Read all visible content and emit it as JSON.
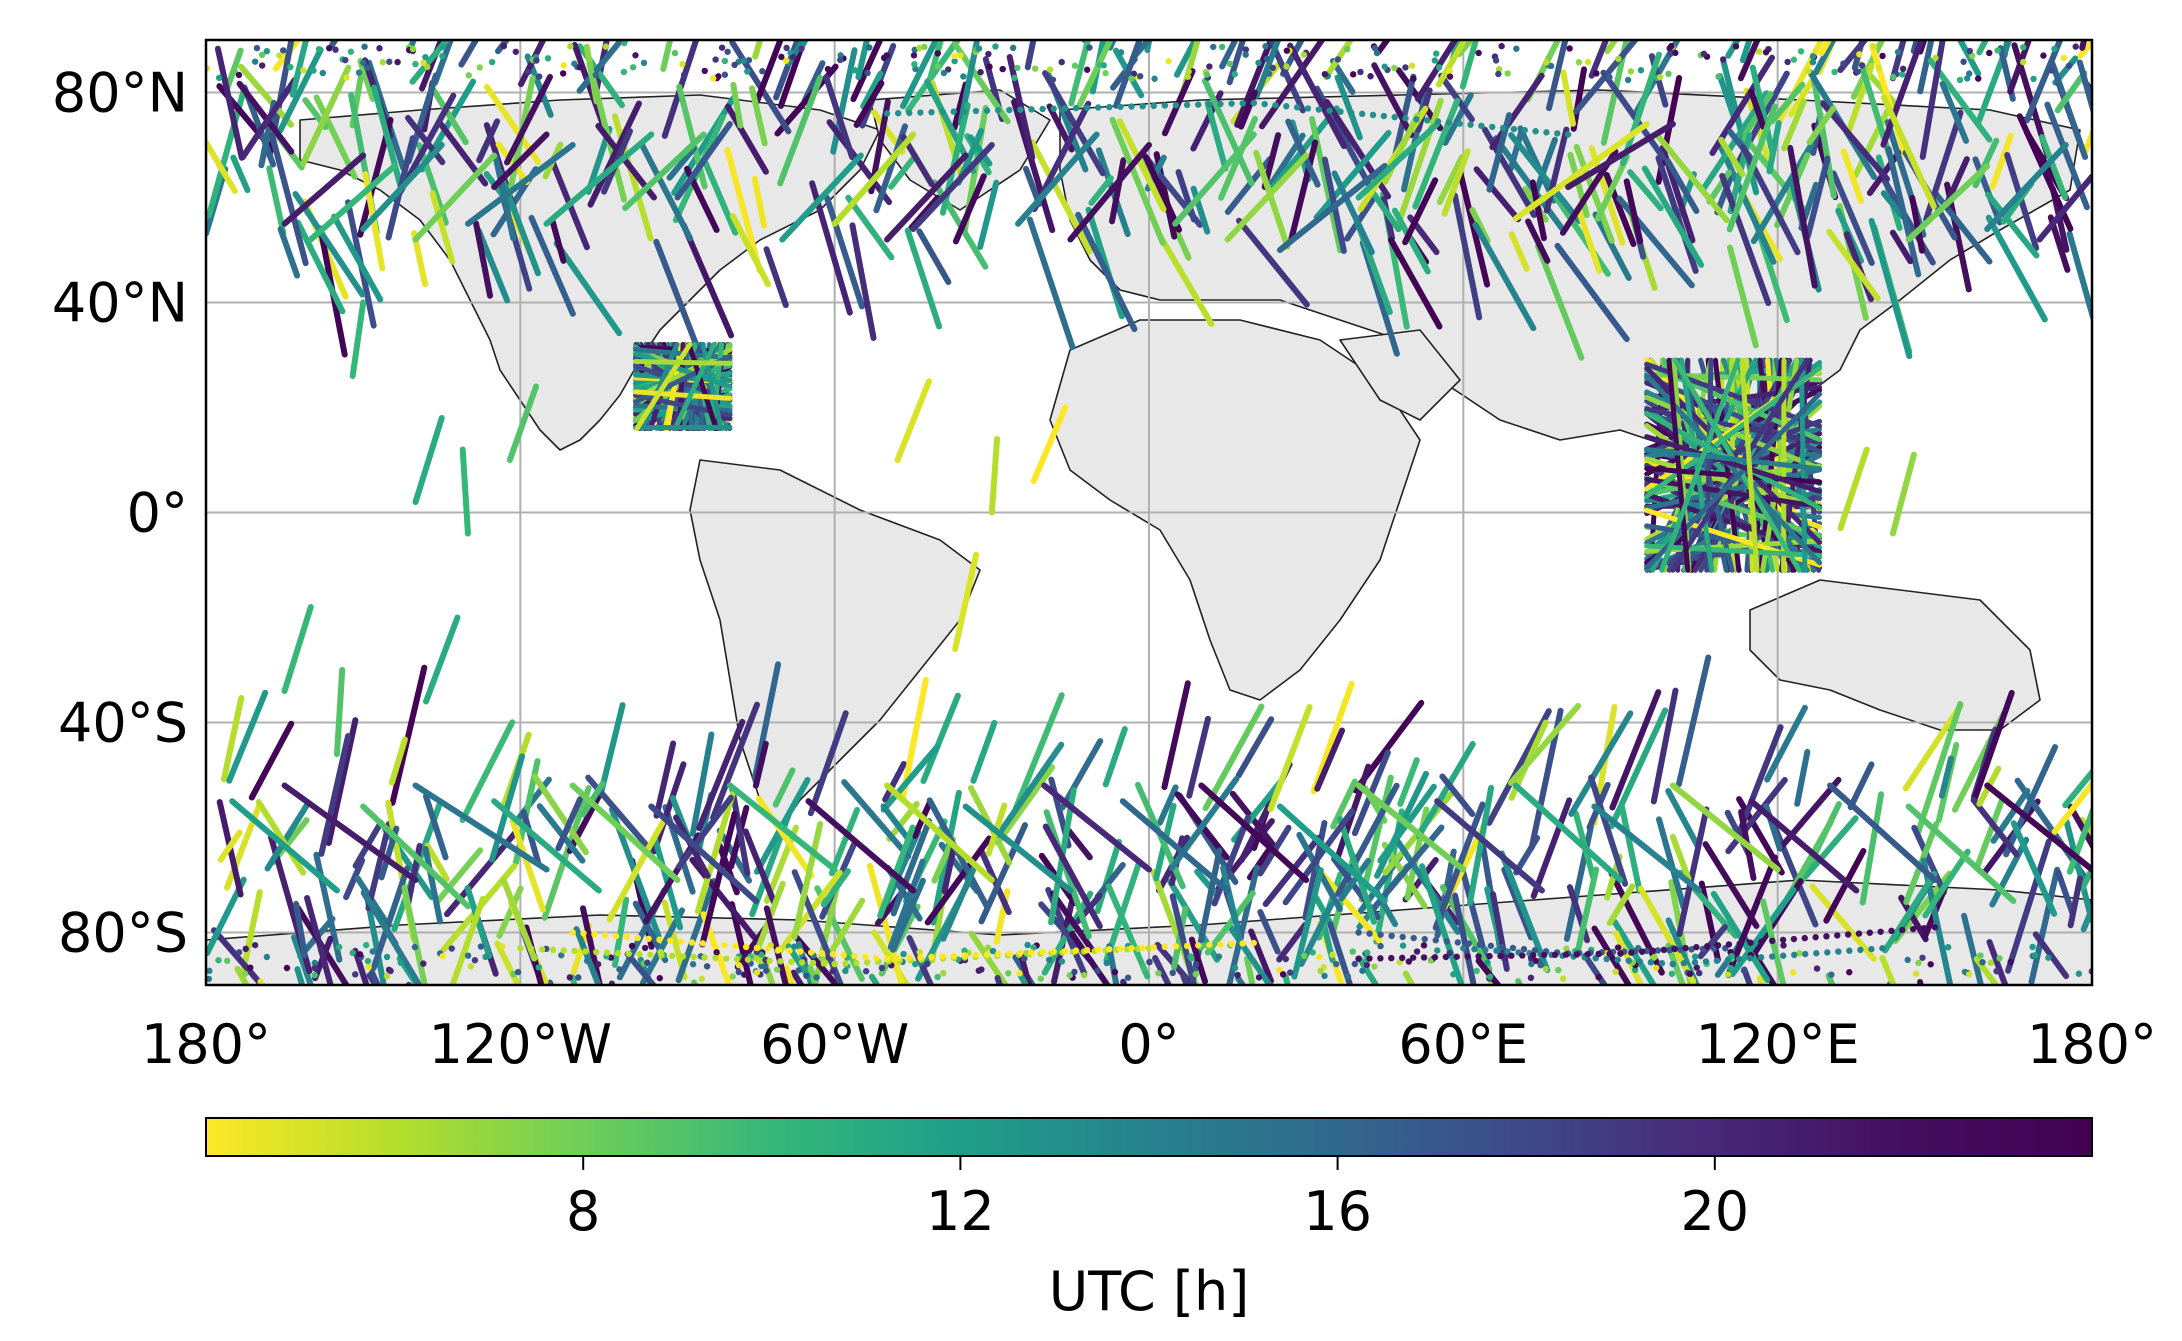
{
  "chart_data": {
    "type": "scatter",
    "projection": "plate-carree",
    "title": "",
    "xlabel": "",
    "ylabel": "",
    "xlim": [
      -180,
      180
    ],
    "ylim": [
      -90,
      90
    ],
    "grid": true,
    "x_ticks": [
      {
        "value": -180,
        "label": "180°"
      },
      {
        "value": -120,
        "label": "120°W"
      },
      {
        "value": -60,
        "label": "60°W"
      },
      {
        "value": 0,
        "label": "0°"
      },
      {
        "value": 60,
        "label": "60°E"
      },
      {
        "value": 120,
        "label": "120°E"
      },
      {
        "value": 180,
        "label": "180°"
      }
    ],
    "y_ticks": [
      {
        "value": 80,
        "label": "80°N"
      },
      {
        "value": 40,
        "label": "40°N"
      },
      {
        "value": 0,
        "label": "0°"
      },
      {
        "value": -40,
        "label": "40°S"
      },
      {
        "value": -80,
        "label": "80°S"
      }
    ],
    "colorbar": {
      "label": "UTC [h]",
      "orientation": "horizontal",
      "placement": "bottom",
      "range": [
        4,
        24
      ],
      "colormap": "viridis reversed",
      "ticks": [
        {
          "value": 8,
          "label": "8"
        },
        {
          "value": 12,
          "label": "12"
        },
        {
          "value": 16,
          "label": "16"
        },
        {
          "value": 20,
          "label": "20"
        }
      ]
    },
    "tracks": [
      {
        "lon": [
          -165,
          -150
        ],
        "lat": [
          55,
          68
        ],
        "utc": 21
      },
      {
        "lon": [
          -160,
          -144
        ],
        "lat": [
          52,
          66
        ],
        "utc": 10
      },
      {
        "lon": [
          -150,
          -135
        ],
        "lat": [
          54,
          70
        ],
        "utc": 13
      },
      {
        "lon": [
          -140,
          -125
        ],
        "lat": [
          52,
          68
        ],
        "utc": 8
      },
      {
        "lon": [
          -130,
          -110
        ],
        "lat": [
          55,
          70
        ],
        "utc": 15
      },
      {
        "lon": [
          -125,
          -115
        ],
        "lat": [
          62,
          72
        ],
        "utc": 22
      },
      {
        "lon": [
          -115,
          -95
        ],
        "lat": [
          55,
          72
        ],
        "utc": 11
      },
      {
        "lon": [
          -100,
          -85
        ],
        "lat": [
          58,
          72
        ],
        "utc": 9
      },
      {
        "lon": [
          -90,
          -80
        ],
        "lat": [
          60,
          74
        ],
        "utc": 17
      },
      {
        "lon": [
          -70,
          -55
        ],
        "lat": [
          52,
          68
        ],
        "utc": 12
      },
      {
        "lon": [
          -60,
          -45
        ],
        "lat": [
          55,
          72
        ],
        "utc": 6
      },
      {
        "lon": [
          -50,
          -35
        ],
        "lat": [
          52,
          68
        ],
        "utc": 21
      },
      {
        "lon": [
          -45,
          -30
        ],
        "lat": [
          54,
          70
        ],
        "utc": 19
      },
      {
        "lon": [
          -25,
          -10
        ],
        "lat": [
          55,
          72
        ],
        "utc": 14
      },
      {
        "lon": [
          -15,
          0
        ],
        "lat": [
          52,
          70
        ],
        "utc": 22
      },
      {
        "lon": [
          5,
          20
        ],
        "lat": [
          55,
          72
        ],
        "utc": 9
      },
      {
        "lon": [
          15,
          30
        ],
        "lat": [
          52,
          68
        ],
        "utc": 7
      },
      {
        "lon": [
          25,
          45
        ],
        "lat": [
          50,
          66
        ],
        "utc": 16
      },
      {
        "lon": [
          40,
          55
        ],
        "lat": [
          60,
          74
        ],
        "utc": 11
      },
      {
        "lon": [
          70,
          95
        ],
        "lat": [
          56,
          74
        ],
        "utc": 5
      },
      {
        "lon": [
          80,
          100
        ],
        "lat": [
          62,
          74
        ],
        "utc": 21
      },
      {
        "lon": [
          145,
          160
        ],
        "lat": [
          52,
          66
        ],
        "utc": 8
      },
      {
        "lon": [
          160,
          175
        ],
        "lat": [
          54,
          70
        ],
        "utc": 14
      },
      {
        "lon": [
          170,
          180
        ],
        "lat": [
          52,
          64
        ],
        "utc": 20
      },
      {
        "lon": [
          -150,
          -152
        ],
        "lat": [
          40,
          26
        ],
        "utc": 10
      },
      {
        "lon": [
          -140,
          -135
        ],
        "lat": [
          2,
          18
        ],
        "utc": 11
      },
      {
        "lon": [
          -130,
          -131
        ],
        "lat": [
          -4,
          12
        ],
        "utc": 10
      },
      {
        "lon": [
          -165,
          -160
        ],
        "lat": [
          -34,
          -18
        ],
        "utc": 10
      },
      {
        "lon": [
          -155,
          -154
        ],
        "lat": [
          -46,
          -30
        ],
        "utc": 9
      },
      {
        "lon": [
          -138,
          -132
        ],
        "lat": [
          -36,
          -20
        ],
        "utc": 11
      },
      {
        "lon": [
          -122,
          -117
        ],
        "lat": [
          10,
          24
        ],
        "utc": 9
      },
      {
        "lon": [
          -48,
          -42
        ],
        "lat": [
          10,
          25
        ],
        "utc": 5
      },
      {
        "lon": [
          -30,
          -29
        ],
        "lat": [
          0,
          14
        ],
        "utc": 6
      },
      {
        "lon": [
          -22,
          -16
        ],
        "lat": [
          6,
          20
        ],
        "utc": 4
      },
      {
        "lon": [
          -37,
          -33
        ],
        "lat": [
          -26,
          -8
        ],
        "utc": 5
      },
      {
        "lon": [
          132,
          137
        ],
        "lat": [
          -3,
          12
        ],
        "utc": 6
      },
      {
        "lon": [
          142,
          146
        ],
        "lat": [
          -4,
          11
        ],
        "utc": 7
      },
      {
        "lon": [
          -175,
          -155
        ],
        "lat": [
          -55,
          -72
        ],
        "utc": 12
      },
      {
        "lon": [
          -165,
          -140
        ],
        "lat": [
          -52,
          -70
        ],
        "utc": 21
      },
      {
        "lon": [
          -150,
          -130
        ],
        "lat": [
          -56,
          -75
        ],
        "utc": 9
      },
      {
        "lon": [
          -140,
          -115
        ],
        "lat": [
          -52,
          -68
        ],
        "utc": 15
      },
      {
        "lon": [
          -125,
          -105
        ],
        "lat": [
          -55,
          -72
        ],
        "utc": 11
      },
      {
        "lon": [
          -110,
          -90
        ],
        "lat": [
          -52,
          -70
        ],
        "utc": 8
      },
      {
        "lon": [
          -95,
          -75
        ],
        "lat": [
          -56,
          -74
        ],
        "utc": 18
      },
      {
        "lon": [
          -80,
          -60
        ],
        "lat": [
          -52,
          -68
        ],
        "utc": 10
      },
      {
        "lon": [
          -65,
          -45
        ],
        "lat": [
          -55,
          -72
        ],
        "utc": 22
      },
      {
        "lon": [
          -50,
          -30
        ],
        "lat": [
          -52,
          -70
        ],
        "utc": 6
      },
      {
        "lon": [
          -35,
          -15
        ],
        "lat": [
          -56,
          -72
        ],
        "utc": 13
      },
      {
        "lon": [
          -20,
          0
        ],
        "lat": [
          -52,
          -68
        ],
        "utc": 20
      },
      {
        "lon": [
          -5,
          15
        ],
        "lat": [
          -55,
          -72
        ],
        "utc": 16
      },
      {
        "lon": [
          10,
          30
        ],
        "lat": [
          -52,
          -70
        ],
        "utc": 23
      },
      {
        "lon": [
          25,
          45
        ],
        "lat": [
          -56,
          -74
        ],
        "utc": 12
      },
      {
        "lon": [
          40,
          60
        ],
        "lat": [
          -52,
          -68
        ],
        "utc": 8
      },
      {
        "lon": [
          55,
          75
        ],
        "lat": [
          -55,
          -72
        ],
        "utc": 19
      },
      {
        "lon": [
          70,
          90
        ],
        "lat": [
          -52,
          -70
        ],
        "utc": 11
      },
      {
        "lon": [
          85,
          105
        ],
        "lat": [
          -56,
          -72
        ],
        "utc": 14
      },
      {
        "lon": [
          100,
          120
        ],
        "lat": [
          -52,
          -68
        ],
        "utc": 7
      },
      {
        "lon": [
          115,
          135
        ],
        "lat": [
          -55,
          -72
        ],
        "utc": 21
      },
      {
        "lon": [
          130,
          150
        ],
        "lat": [
          -52,
          -70
        ],
        "utc": 17
      },
      {
        "lon": [
          145,
          165
        ],
        "lat": [
          -56,
          -74
        ],
        "utc": 9
      },
      {
        "lon": [
          160,
          180
        ],
        "lat": [
          -52,
          -68
        ],
        "utc": 23
      }
    ],
    "dotted_tracks": [
      {
        "lon": [
          -50,
          20,
          80
        ],
        "lat": [
          76,
          78,
          72
        ],
        "utc": 13
      },
      {
        "lon": [
          40,
          80,
          110
        ],
        "lat": [
          -80,
          -84,
          -83
        ],
        "utc": 17
      },
      {
        "lon": [
          -120,
          -60,
          0
        ],
        "lat": [
          -83,
          -86,
          -83
        ],
        "utc": 6
      },
      {
        "lon": [
          -110,
          -50,
          20
        ],
        "lat": [
          -80,
          -85,
          -82
        ],
        "utc": 4
      },
      {
        "lon": [
          60,
          100,
          140
        ],
        "lat": [
          -83,
          -86,
          -83
        ],
        "utc": 14
      },
      {
        "lon": [
          40,
          90,
          150
        ],
        "lat": [
          -85,
          -84,
          -79
        ],
        "utc": 22
      }
    ],
    "regions": [
      {
        "lon": [
          -98,
          -80
        ],
        "lat": [
          16,
          32
        ],
        "utc_range": [
          4,
          24
        ]
      },
      {
        "lon": [
          95,
          128
        ],
        "lat": [
          -11,
          29
        ],
        "utc_range": [
          4,
          24
        ]
      }
    ],
    "bands": [
      {
        "lat": [
          50,
          90
        ],
        "utc_range": [
          4,
          24
        ]
      },
      {
        "lat": [
          -90,
          -50
        ],
        "utc_range": [
          4,
          24
        ]
      }
    ]
  }
}
